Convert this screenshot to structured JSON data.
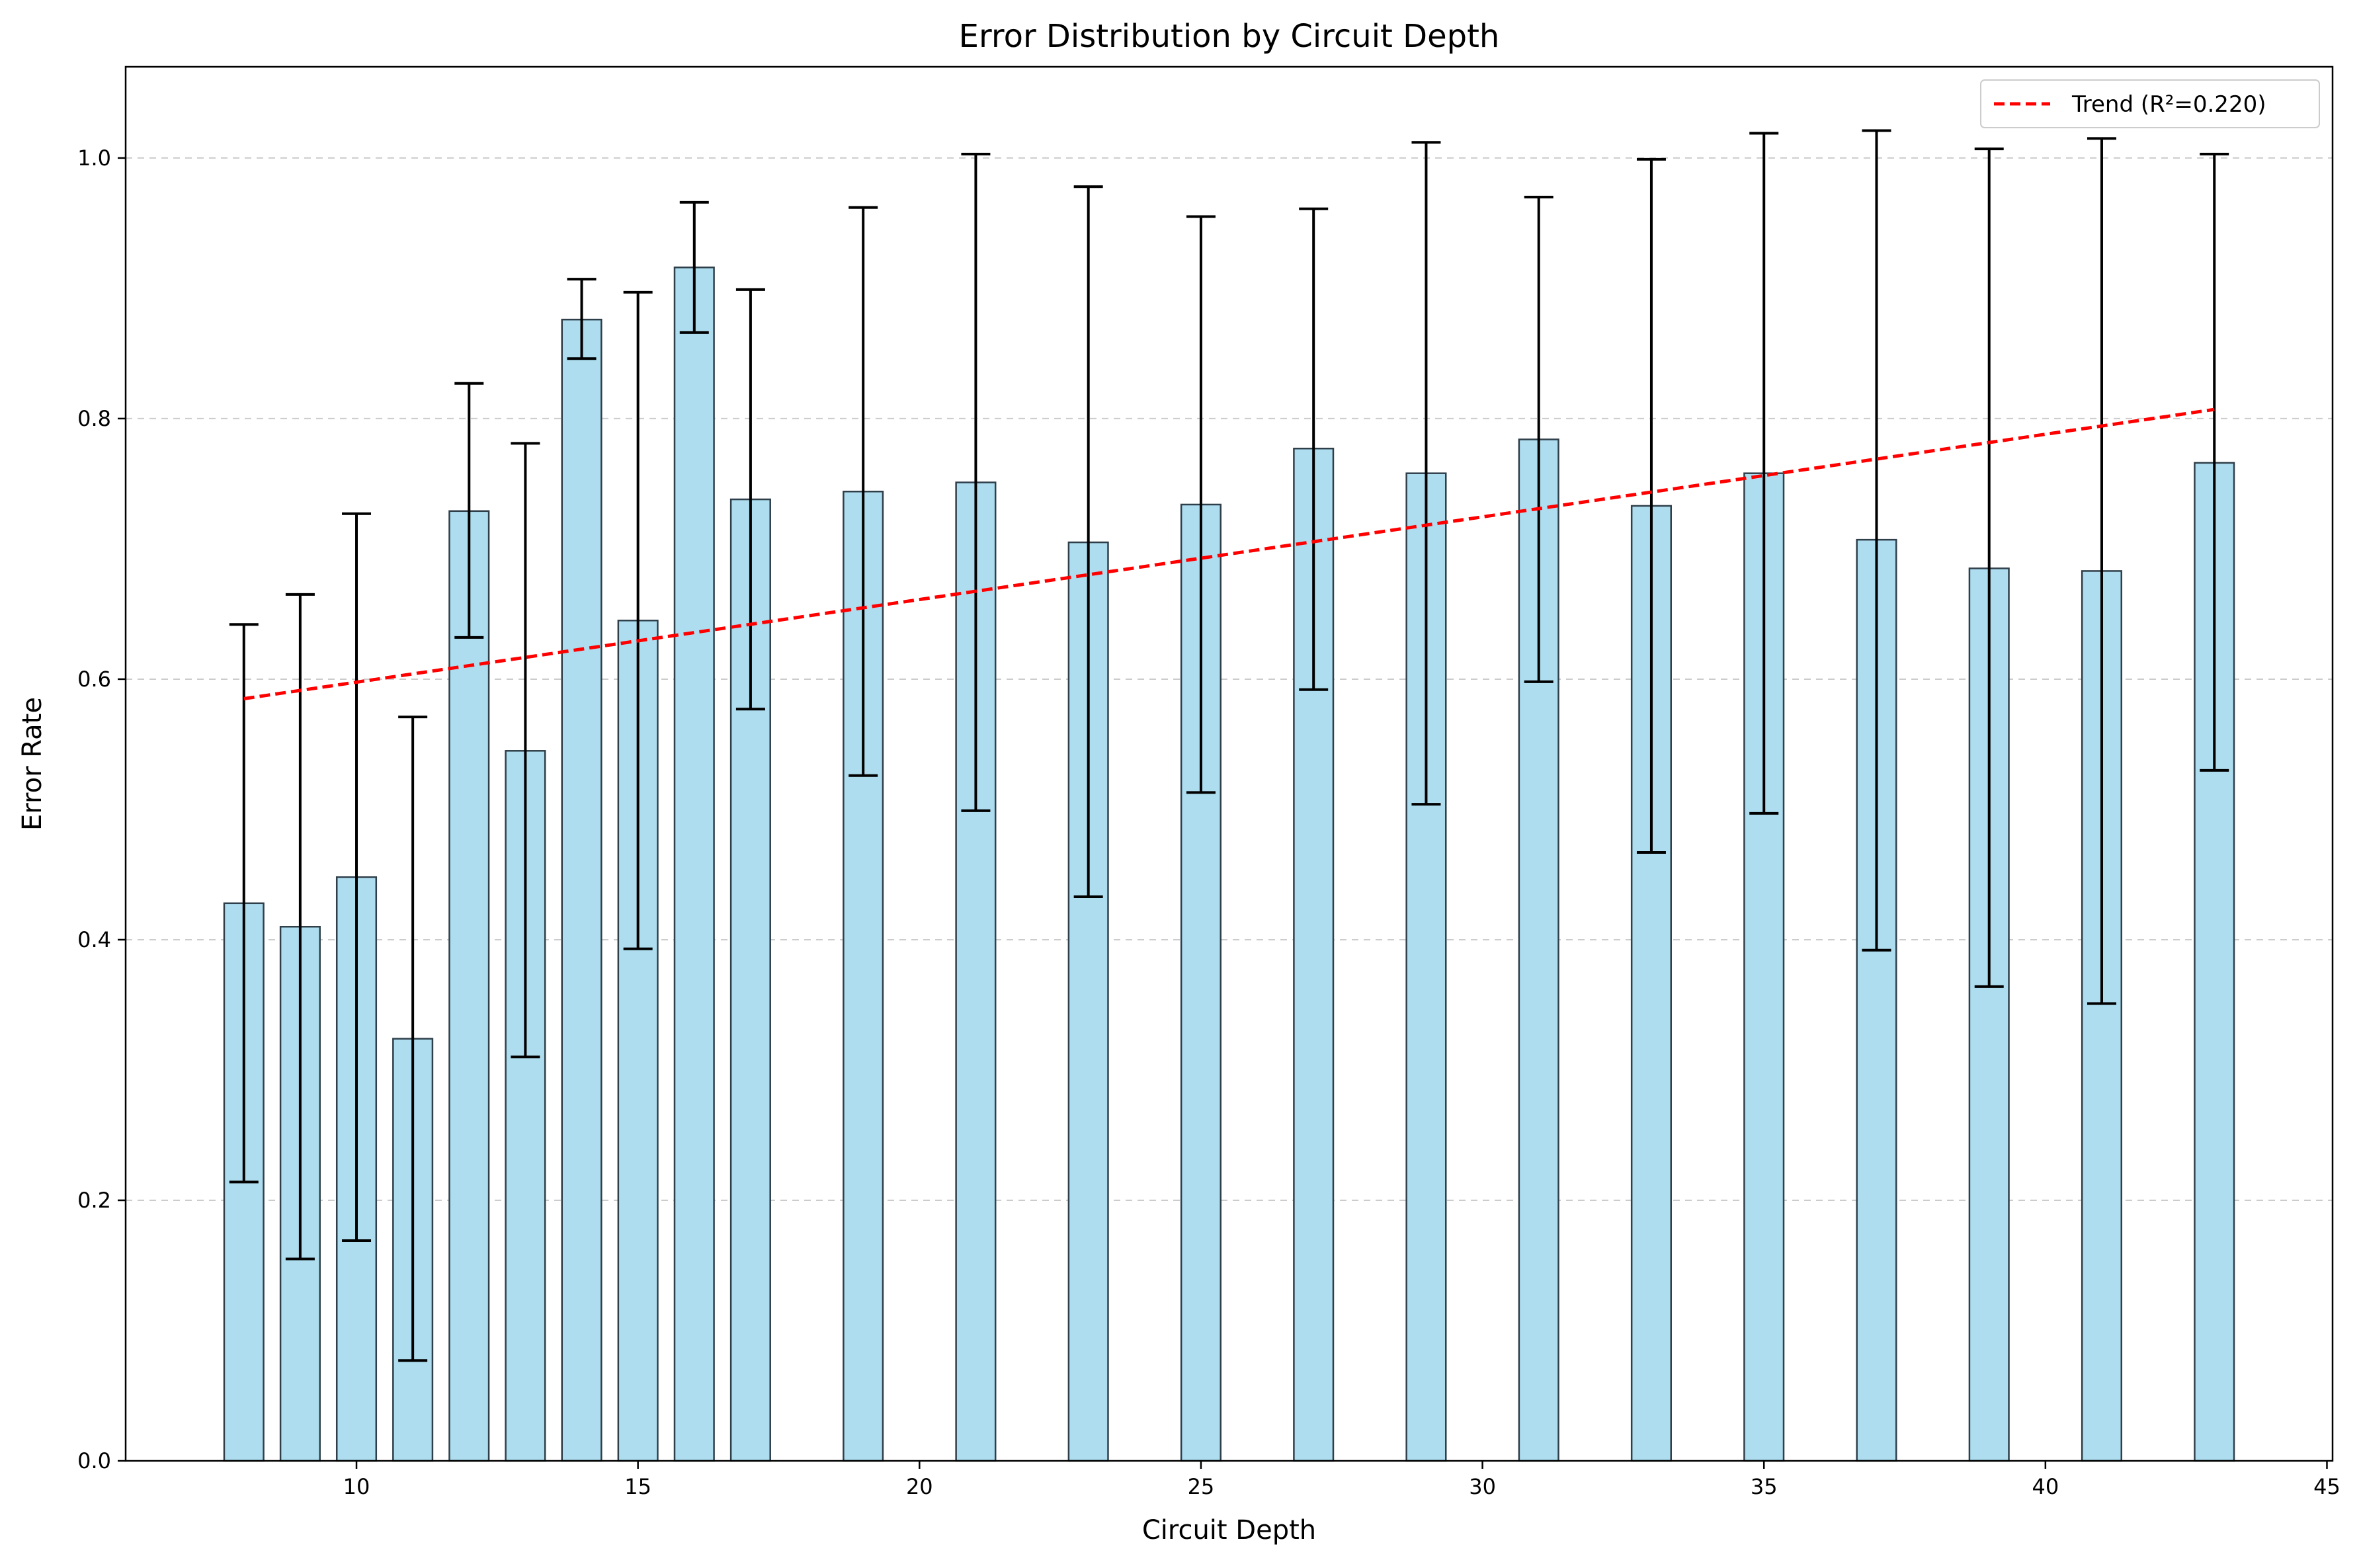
{
  "chart_data": {
    "type": "bar",
    "title": "Error Distribution by Circuit Depth",
    "xlabel": "Circuit Depth",
    "ylabel": "Error Rate",
    "xlim": [
      5.9,
      45.1
    ],
    "ylim": [
      0.0,
      1.07
    ],
    "xticks": [
      10,
      15,
      20,
      25,
      30,
      35,
      40,
      45
    ],
    "yticks": [
      0.0,
      0.2,
      0.4,
      0.6,
      0.8,
      1.0
    ],
    "grid": "y-dashed",
    "legend_position": "top-right",
    "colors": {
      "bar_fill": "#ADDDEF",
      "bar_edge": "#2F3F4A",
      "error_bar": "#000000",
      "trend": "#FF0000",
      "grid": "#CCCCCC"
    },
    "bar_width": 0.7,
    "x": [
      8,
      9,
      10,
      11,
      12,
      13,
      14,
      15,
      16,
      17,
      19,
      21,
      23,
      25,
      27,
      29,
      31,
      33,
      35,
      37,
      39,
      41,
      43
    ],
    "values": [
      0.428,
      0.41,
      0.448,
      0.324,
      0.729,
      0.545,
      0.876,
      0.645,
      0.916,
      0.738,
      0.744,
      0.751,
      0.705,
      0.734,
      0.777,
      0.758,
      0.784,
      0.733,
      0.758,
      0.707,
      0.685,
      0.683,
      0.766
    ],
    "error_low": [
      0.214,
      0.155,
      0.169,
      0.077,
      0.632,
      0.31,
      0.846,
      0.393,
      0.866,
      0.577,
      0.526,
      0.499,
      0.433,
      0.513,
      0.592,
      0.504,
      0.598,
      0.467,
      0.497,
      0.392,
      0.364,
      0.351,
      0.53
    ],
    "error_high": [
      0.642,
      0.665,
      0.727,
      0.571,
      0.827,
      0.781,
      0.907,
      0.897,
      0.966,
      0.899,
      0.962,
      1.003,
      0.978,
      0.955,
      0.961,
      1.012,
      0.97,
      0.999,
      1.019,
      1.021,
      1.007,
      1.015,
      1.003
    ],
    "trend": {
      "name": "Trend (R²=0.220)",
      "x": [
        8,
        43
      ],
      "y": [
        0.585,
        0.807
      ]
    }
  }
}
